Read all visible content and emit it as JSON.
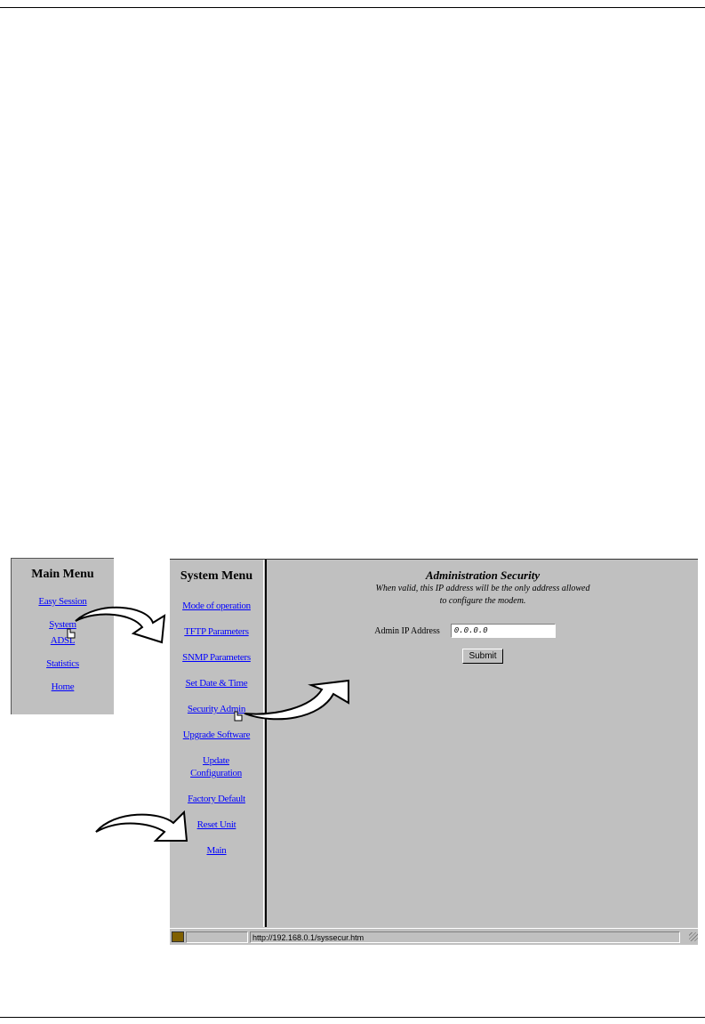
{
  "main_menu": {
    "title": "Main Menu",
    "items": [
      "Easy Session",
      "System",
      "ADSL",
      "Statistics",
      "Home"
    ]
  },
  "system_menu": {
    "title": "System Menu",
    "items": [
      "Mode of operation",
      "TFTP Parameters",
      "SNMP Parameters",
      "Set Date & Time",
      "Security Admin",
      "Upgrade Software",
      "Update Configuration",
      "Factory Default",
      "Reset Unit",
      "Main"
    ]
  },
  "content": {
    "title": "Administration Security",
    "description_line1": "When valid, this IP address will be the only address allowed",
    "description_line2": "to configure the modem.",
    "ip_label": "Admin IP Address",
    "ip_value": "0.0.0.0",
    "submit_label": "Submit"
  },
  "status_bar": {
    "url": "http://192.168.0.1/syssecur.htm"
  }
}
